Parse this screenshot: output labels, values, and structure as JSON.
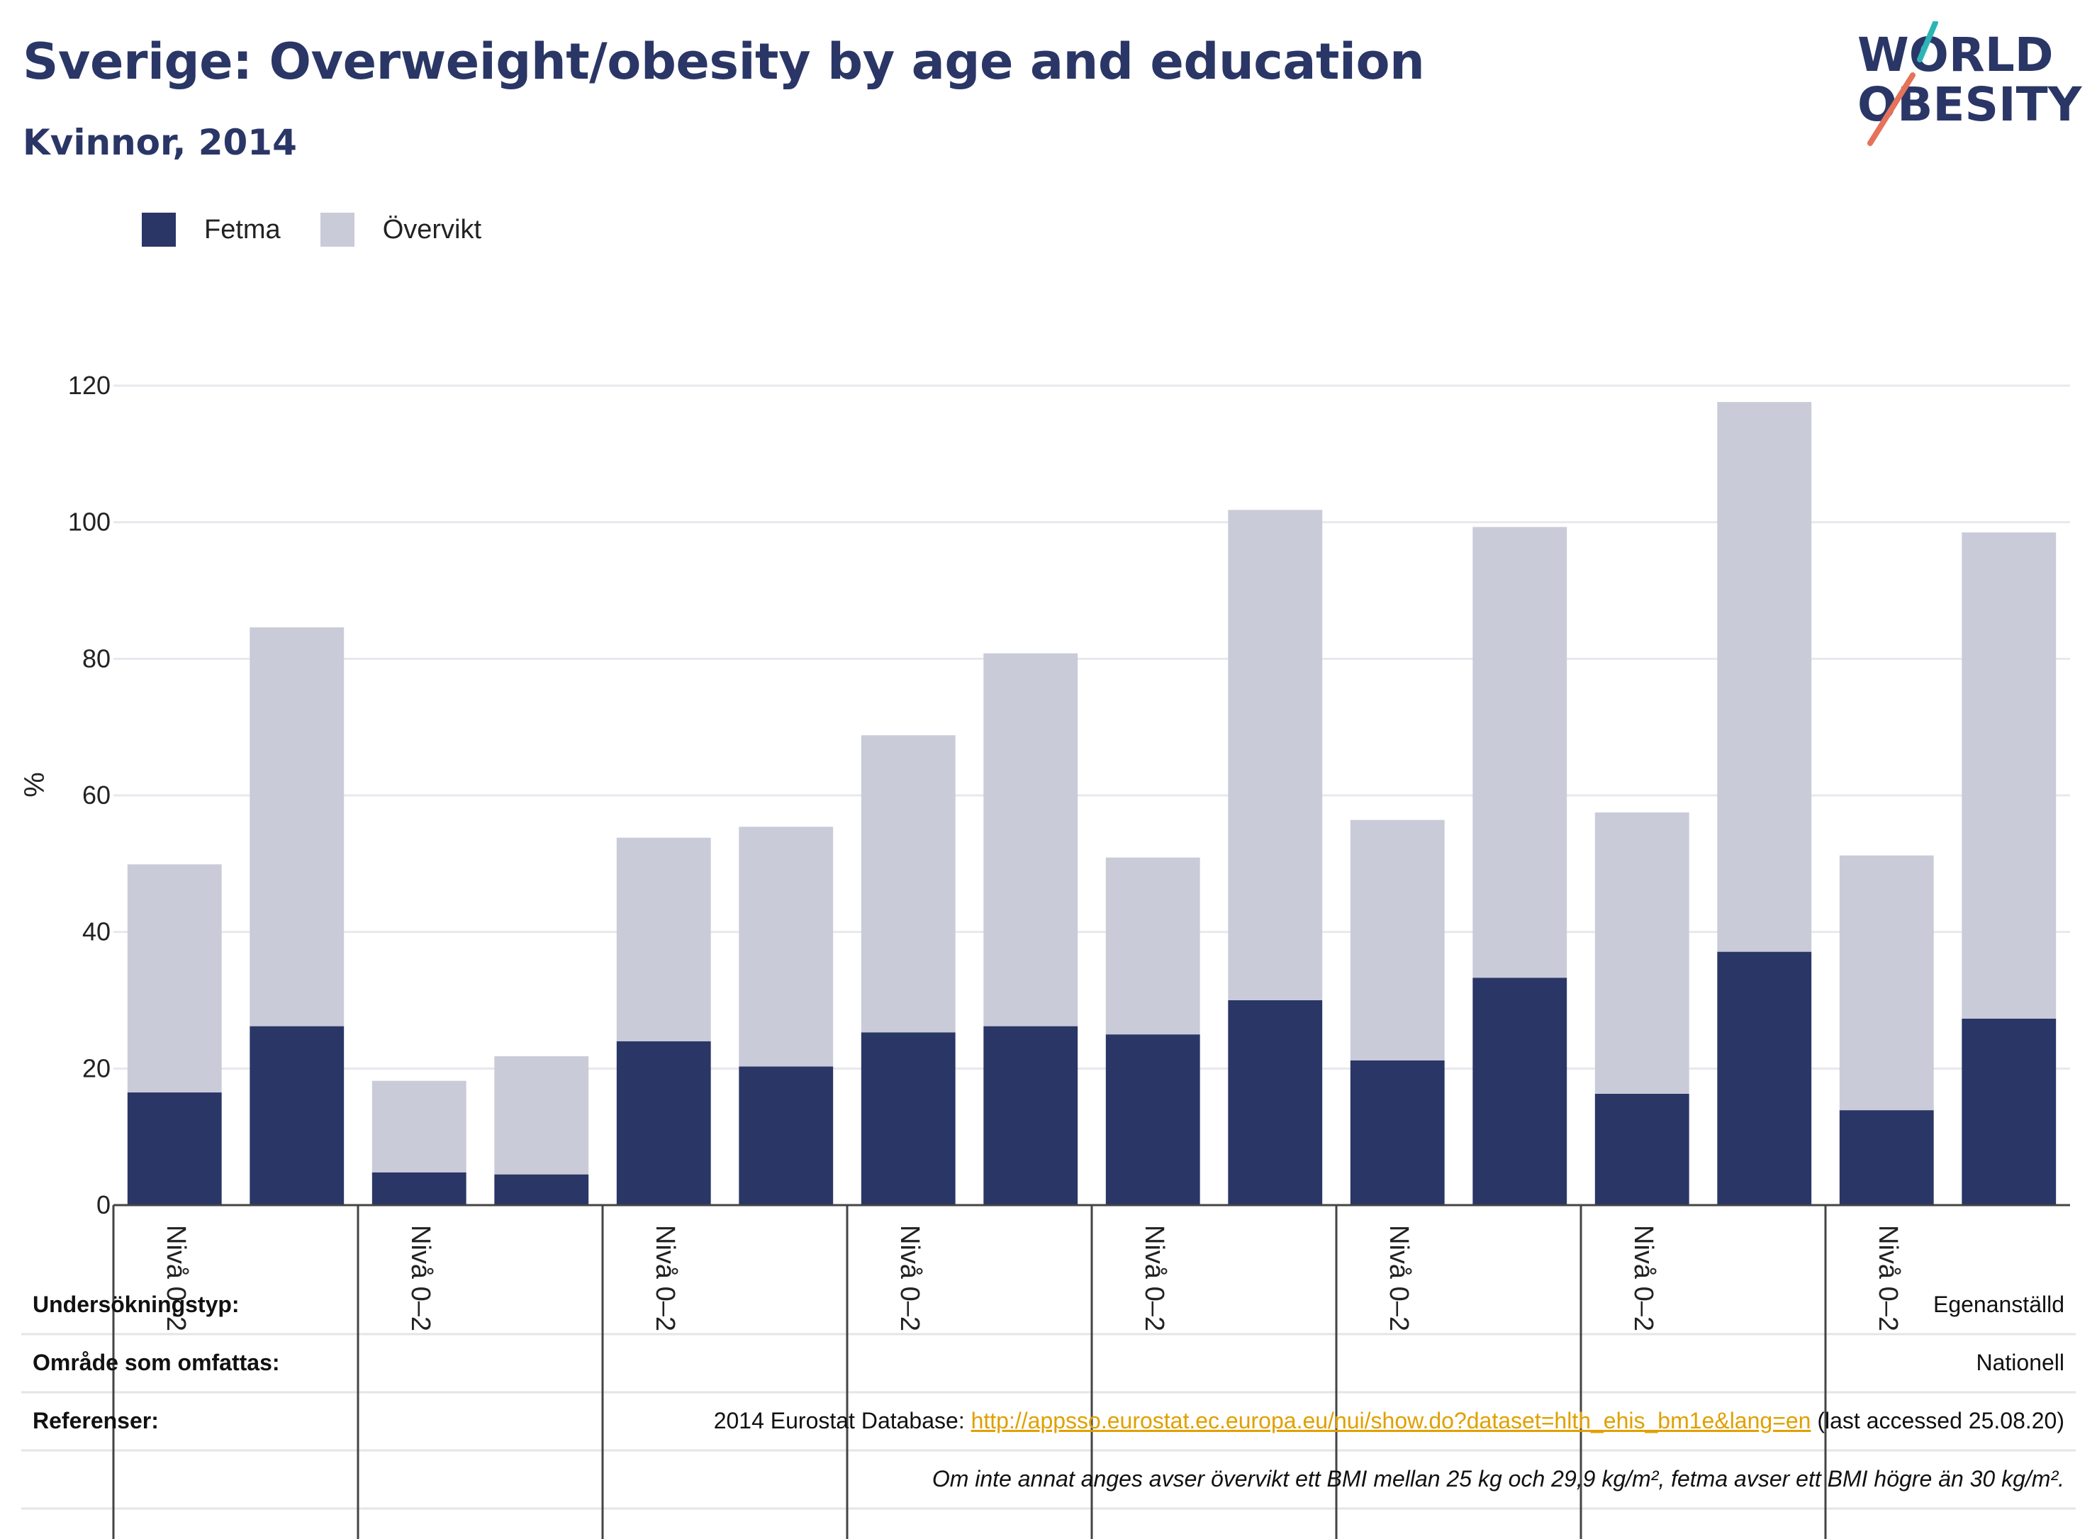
{
  "title": "Sverige: Overweight/obesity by age and education",
  "subtitle": "Kvinnor, 2014",
  "logo": {
    "line1": "WORLD",
    "line2": "OBESITY"
  },
  "colors": {
    "fetma": "#2a3666",
    "overvikt": "#c9cbd8",
    "title": "#2a3666",
    "link": "#e0a000"
  },
  "chart_data": {
    "type": "bar",
    "stacked": true,
    "ylabel": "%",
    "ylim": [
      0,
      120
    ],
    "yticks": [
      0,
      20,
      40,
      60,
      80,
      100,
      120
    ],
    "group_label": "Nivå 0–2",
    "groups": 8,
    "bars_per_group": 2,
    "legend": [
      {
        "name": "Fetma",
        "color": "#2a3666"
      },
      {
        "name": "Övervikt",
        "color": "#c9cbd8"
      }
    ],
    "series": [
      {
        "name": "Fetma",
        "values": [
          16.5,
          26.2,
          4.8,
          4.5,
          24.0,
          20.3,
          25.3,
          26.2,
          25.0,
          30.0,
          21.2,
          33.3,
          16.3,
          37.1,
          13.9,
          27.3
        ]
      },
      {
        "name": "Övervikt",
        "values": [
          33.4,
          58.4,
          13.4,
          17.3,
          29.8,
          35.1,
          43.5,
          54.6,
          25.9,
          71.8,
          35.2,
          66.0,
          41.2,
          80.5,
          37.3,
          71.2
        ]
      }
    ]
  },
  "info": {
    "survey_type": {
      "label": "Undersökningstyp:",
      "value": "Egenanställd"
    },
    "area": {
      "label": "Område som omfattas:",
      "value": "Nationell"
    },
    "references": {
      "label": "Referenser:",
      "prefix": "2014 Eurostat Database: ",
      "link": "http://appsso.eurostat.ec.europa.eu/nui/show.do?dataset=hlth_ehis_bm1e&lang=en",
      "suffix": " (last accessed 25.08.20)"
    },
    "note": "Om inte annat anges avser övervikt ett BMI mellan 25 kg och 29,9 kg/m², fetma avser ett BMI högre än 30 kg/m²."
  }
}
